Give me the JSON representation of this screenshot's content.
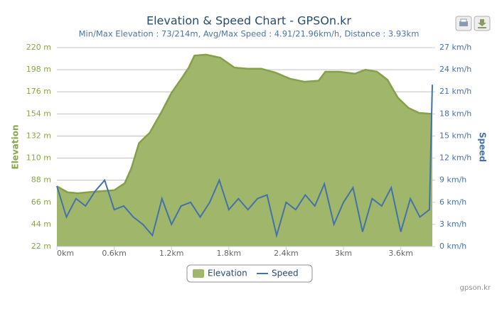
{
  "chart_data": {
    "type": "area-line",
    "title": "Elevation & Speed Chart - GPSOn.kr",
    "subtitle": "Min/Max Elevation : 73/214m, Avg/Max Speed : 4.91/21.96km/h, Distance : 3.93km",
    "y_label": "Elevation",
    "y2_label": "Speed",
    "credit": "gpson.kr",
    "xlim": [
      0,
      3.93
    ],
    "xticks": [
      {
        "value": 0,
        "label": "0km"
      },
      {
        "value": 0.6,
        "label": "0.6km"
      },
      {
        "value": 1.2,
        "label": "1.2km"
      },
      {
        "value": 1.8,
        "label": "1.8km"
      },
      {
        "value": 2.4,
        "label": "2.4km"
      },
      {
        "value": 3,
        "label": "3km"
      },
      {
        "value": 3.6,
        "label": "3.6km"
      }
    ],
    "ylim": [
      22,
      220
    ],
    "yticks": [
      {
        "value": 22,
        "label": "22 m"
      },
      {
        "value": 44,
        "label": "44 m"
      },
      {
        "value": 66,
        "label": "66 m"
      },
      {
        "value": 88,
        "label": "88 m"
      },
      {
        "value": 110,
        "label": "110 m"
      },
      {
        "value": 132,
        "label": "132 m"
      },
      {
        "value": 154,
        "label": "154 m"
      },
      {
        "value": 176,
        "label": "176 m"
      },
      {
        "value": 198,
        "label": "198 m"
      },
      {
        "value": 220,
        "label": "220 m"
      }
    ],
    "y2lim": [
      0,
      27
    ],
    "y2ticks": [
      {
        "value": 0,
        "label": "0 km/h"
      },
      {
        "value": 3,
        "label": "3 km/h"
      },
      {
        "value": 6,
        "label": "6 km/h"
      },
      {
        "value": 9,
        "label": "9 km/h"
      },
      {
        "value": 12,
        "label": "12 km/h"
      },
      {
        "value": 15,
        "label": "15 km/h"
      },
      {
        "value": 18,
        "label": "18 km/h"
      },
      {
        "value": 21,
        "label": "21 km/h"
      },
      {
        "value": 24,
        "label": "24 km/h"
      },
      {
        "value": 27,
        "label": "27 km/h"
      }
    ],
    "grid": true,
    "series": [
      {
        "name": "Elevation",
        "type": "area",
        "color": "#9fb66b",
        "line_color": "#86a04a",
        "x": [
          0,
          0.11,
          0.22,
          0.33,
          0.45,
          0.6,
          0.71,
          0.78,
          0.86,
          0.97,
          1.09,
          1.2,
          1.31,
          1.38,
          1.44,
          1.56,
          1.71,
          1.86,
          2.0,
          2.14,
          2.29,
          2.44,
          2.59,
          2.74,
          2.81,
          2.96,
          3.12,
          3.23,
          3.35,
          3.46,
          3.57,
          3.68,
          3.79,
          3.93
        ],
        "values": [
          82,
          76,
          75,
          76,
          77,
          78,
          85,
          100,
          125,
          135,
          155,
          175,
          190,
          200,
          212,
          213,
          210,
          200,
          199,
          199,
          195,
          189,
          186,
          187,
          196,
          196,
          194,
          198,
          196,
          188,
          170,
          160,
          155,
          154
        ]
      },
      {
        "name": "Speed",
        "type": "line",
        "axis": "y2",
        "color": "#4572a7",
        "x": [
          0,
          0.1,
          0.2,
          0.3,
          0.4,
          0.5,
          0.6,
          0.7,
          0.8,
          0.9,
          1.0,
          1.1,
          1.2,
          1.3,
          1.4,
          1.5,
          1.6,
          1.7,
          1.8,
          1.9,
          2.0,
          2.1,
          2.2,
          2.3,
          2.4,
          2.5,
          2.6,
          2.7,
          2.8,
          2.9,
          3.0,
          3.1,
          3.2,
          3.3,
          3.4,
          3.5,
          3.6,
          3.7,
          3.8,
          3.9,
          3.93
        ],
        "values": [
          8.2,
          4,
          6.5,
          5.5,
          7.5,
          9,
          5,
          5.5,
          4,
          3,
          1.5,
          6.5,
          3,
          5.5,
          6,
          4,
          6,
          9,
          5,
          6.5,
          5,
          6.5,
          7,
          1.5,
          6,
          5,
          7,
          5.5,
          8.5,
          3,
          6,
          8,
          2,
          6.5,
          5.5,
          8,
          2,
          6.5,
          4,
          5,
          21.96
        ]
      }
    ]
  }
}
